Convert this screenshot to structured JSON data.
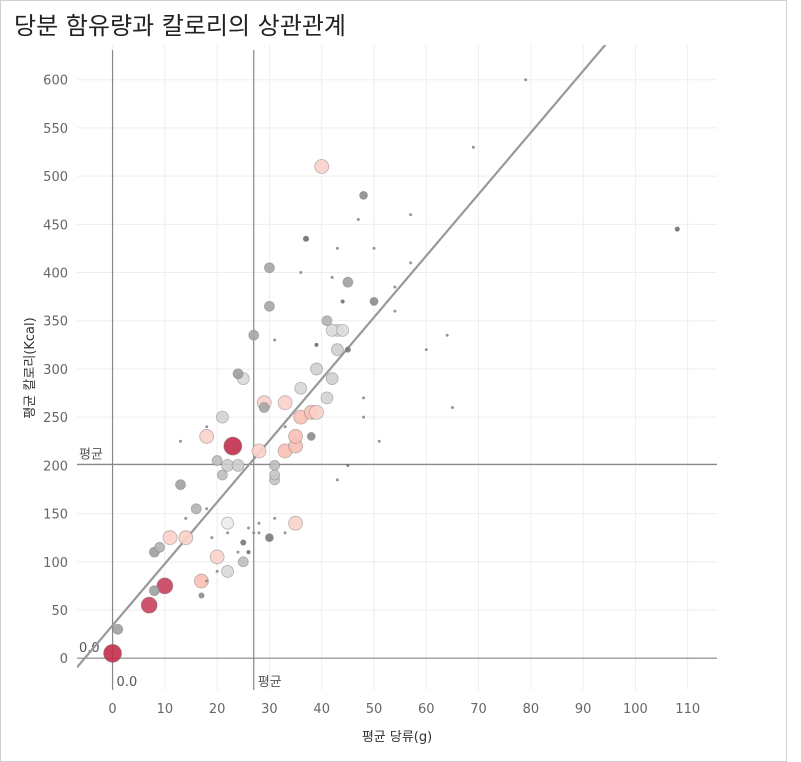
{
  "chart_data": {
    "type": "scatter",
    "title": "당분 함유량과 칼로리의 상관관계",
    "x_label": "평균 당류(g)",
    "y_label": "평균 칼로리(Kcal)",
    "xlim": [
      -6.8,
      115.6
    ],
    "ylim": [
      -33,
      636
    ],
    "xticks": [
      0,
      10,
      20,
      30,
      40,
      50,
      60,
      70,
      80,
      90,
      100,
      110
    ],
    "yticks": [
      0,
      50,
      100,
      150,
      200,
      250,
      300,
      350,
      400,
      450,
      500,
      550,
      600
    ],
    "grid": true,
    "trendline": {
      "slope": 6.39,
      "intercept": 34,
      "color": "#999999"
    },
    "ref_lines": [
      {
        "axis": "x",
        "value": 0,
        "label": "0.0"
      },
      {
        "axis": "x",
        "value": 27,
        "label": "평균"
      },
      {
        "axis": "y",
        "value": 0,
        "label": "0.0"
      },
      {
        "axis": "y",
        "value": 201,
        "label": "평균"
      }
    ],
    "x": [
      0,
      7,
      10,
      23,
      40,
      11,
      14,
      18,
      20,
      17,
      29,
      33,
      28,
      33,
      35,
      35,
      35,
      36,
      38,
      39,
      22,
      22,
      43,
      42,
      44,
      43,
      36,
      39,
      41,
      42,
      25,
      21,
      22,
      24,
      31,
      31,
      31,
      25,
      20,
      21,
      24,
      27,
      30,
      30,
      29,
      41,
      45,
      50,
      48,
      13,
      16,
      8,
      9,
      8,
      1,
      30,
      38,
      25,
      45,
      37,
      17,
      79,
      69,
      108,
      57,
      47,
      43,
      50,
      57,
      36,
      42,
      54,
      44,
      54,
      31,
      39,
      60,
      64,
      48,
      48,
      65,
      51,
      45,
      43,
      13,
      18,
      14,
      18,
      33,
      31,
      28,
      26,
      26,
      24,
      27,
      28,
      33,
      19,
      22,
      20,
      18
    ],
    "values": [
      5,
      55,
      75,
      220,
      510,
      125,
      125,
      230,
      105,
      80,
      265,
      265,
      215,
      215,
      220,
      230,
      140,
      250,
      255,
      255,
      140,
      90,
      340,
      340,
      340,
      320,
      280,
      300,
      270,
      290,
      290,
      250,
      200,
      200,
      200,
      185,
      190,
      100,
      205,
      190,
      295,
      335,
      405,
      365,
      260,
      350,
      390,
      370,
      480,
      180,
      155,
      110,
      115,
      70,
      30,
      125,
      230,
      120,
      320,
      435,
      65,
      600,
      530,
      445,
      460,
      455,
      425,
      425,
      410,
      400,
      395,
      385,
      370,
      360,
      330,
      325,
      320,
      335,
      270,
      250,
      260,
      225,
      200,
      185,
      225,
      240,
      145,
      155,
      240,
      145,
      140,
      135,
      110,
      110,
      130,
      130,
      130,
      125,
      130,
      90,
      80
    ],
    "sizes": [
      9,
      8,
      8,
      9,
      7,
      7,
      7,
      7,
      7,
      7,
      7,
      7,
      7,
      7,
      7,
      7,
      7,
      7,
      7,
      7,
      6,
      6,
      6,
      6,
      6,
      6,
      6,
      6,
      6,
      6,
      6,
      6,
      6,
      6,
      5,
      5,
      5,
      5,
      5,
      5,
      5,
      5,
      5,
      5,
      5,
      5,
      5,
      4,
      4,
      5,
      5,
      5,
      5,
      5,
      5,
      4,
      4,
      3,
      3,
      3,
      3,
      1.5,
      1.5,
      2.5,
      1.5,
      1.5,
      1.5,
      1.5,
      1.5,
      1.5,
      1.5,
      1.5,
      2,
      1.5,
      1.5,
      2,
      1.5,
      1.5,
      1.5,
      1.5,
      1.5,
      1.5,
      1.5,
      1.5,
      1.5,
      1.5,
      1.5,
      1.5,
      1.5,
      1.5,
      1.5,
      1.5,
      2,
      1.5,
      1.5,
      1.5,
      1.5,
      1.5,
      1.5,
      1.5,
      1.5
    ],
    "colors": [
      "#c22e4c",
      "#c9405c",
      "#c9405c",
      "#c22e4c",
      "#fbd1c9",
      "#fbd1c9",
      "#fbd1c9",
      "#fbd1c9",
      "#fbd1c9",
      "#f9bfb3",
      "#fbd1c9",
      "#fbd1c9",
      "#fbd1c9",
      "#f9bfb3",
      "#f9bfb3",
      "#f9bfb3",
      "#fbd1c9",
      "#f9bfb3",
      "#f9bfb3",
      "#fbd1c9",
      "#ececec",
      "#d9d9d9",
      "#dcdcdc",
      "#dcdcdc",
      "#dcdcdc",
      "#cfcfcf",
      "#d6d6d6",
      "#cfcfcf",
      "#d3d3d3",
      "#cfcfcf",
      "#d9d9d9",
      "#d3d3d3",
      "#cccccc",
      "#cccccc",
      "#bdbdbd",
      "#c6c6c6",
      "#c6c6c6",
      "#bdbdbd",
      "#bdbdbd",
      "#bdbdbd",
      "#9e9e9e",
      "#a6a6a6",
      "#a6a6a6",
      "#a6a6a6",
      "#a6a6a6",
      "#b3b3b3",
      "#a0a0a0",
      "#8c8c8c",
      "#8c8c8c",
      "#a0a0a0",
      "#b3b3b3",
      "#a0a0a0",
      "#b3b3b3",
      "#a0a0a0",
      "#a0a0a0",
      "#7a7a7a",
      "#8c8c8c",
      "#7a7a7a",
      "#7a7a7a",
      "#6e6e6e",
      "#8c8c8c",
      "#8c8c8c",
      "#8c8c8c",
      "#6e6e6e",
      "#8c8c8c",
      "#8c8c8c",
      "#8c8c8c",
      "#8c8c8c",
      "#8c8c8c",
      "#8c8c8c",
      "#8c8c8c",
      "#8c8c8c",
      "#6e6e6e",
      "#8c8c8c",
      "#8c8c8c",
      "#6e6e6e",
      "#8c8c8c",
      "#8c8c8c",
      "#8c8c8c",
      "#8c8c8c",
      "#8c8c8c",
      "#8c8c8c",
      "#6e6e6e",
      "#8c8c8c",
      "#8c8c8c",
      "#8c8c8c",
      "#8c8c8c",
      "#8c8c8c",
      "#8c8c8c",
      "#8c8c8c",
      "#8c8c8c",
      "#8c8c8c",
      "#6e6e6e",
      "#8c8c8c",
      "#8c8c8c",
      "#8c8c8c",
      "#8c8c8c",
      "#8c8c8c",
      "#8c8c8c",
      "#8c8c8c",
      "#8c8c8c"
    ]
  }
}
